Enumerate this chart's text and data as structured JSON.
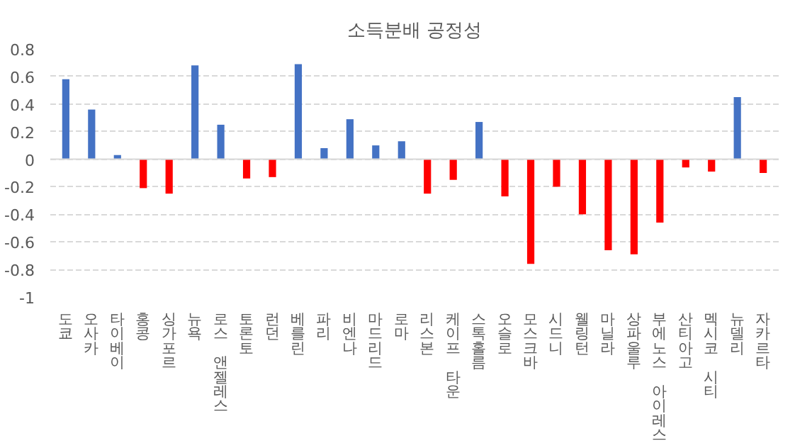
{
  "chart_data": {
    "type": "bar",
    "title": "소득분배 공정성",
    "categories": [
      "도쿄",
      "오사카",
      "타이베이",
      "홍콩",
      "싱가포르",
      "뉴욕",
      "로스 앤젤레스",
      "토론토",
      "런던",
      "베를린",
      "파리",
      "비엔나",
      "마드리드",
      "로마",
      "리스본",
      "케이프 타운",
      "스톡홀름",
      "오슬로",
      "모스크바",
      "시드니",
      "웰링턴",
      "마닐라",
      "상파울루",
      "부에노스 아이레스",
      "산티아고",
      "멕시코 시티",
      "뉴델리",
      "자카르타"
    ],
    "values": [
      0.58,
      0.36,
      0.03,
      -0.21,
      -0.25,
      0.68,
      0.25,
      -0.14,
      -0.13,
      0.69,
      0.08,
      0.29,
      0.1,
      0.13,
      -0.25,
      -0.15,
      0.27,
      -0.27,
      -0.76,
      -0.2,
      -0.4,
      -0.66,
      -0.69,
      -0.46,
      -0.06,
      -0.09,
      0.45,
      -0.1
    ],
    "colors": [
      "#4472c4",
      "#4472c4",
      "#4472c4",
      "#ff0000",
      "#ff0000",
      "#4472c4",
      "#4472c4",
      "#ff0000",
      "#ff0000",
      "#4472c4",
      "#4472c4",
      "#4472c4",
      "#4472c4",
      "#4472c4",
      "#ff0000",
      "#ff0000",
      "#4472c4",
      "#ff0000",
      "#ff0000",
      "#ff0000",
      "#ff0000",
      "#ff0000",
      "#ff0000",
      "#ff0000",
      "#ff0000",
      "#ff0000",
      "#4472c4",
      "#ff0000"
    ],
    "ylim": [
      -1,
      0.8
    ],
    "yticks": [
      -1,
      -0.8,
      -0.6,
      -0.4,
      -0.2,
      0,
      0.2,
      0.4,
      0.6,
      0.8
    ],
    "grid": "y"
  }
}
